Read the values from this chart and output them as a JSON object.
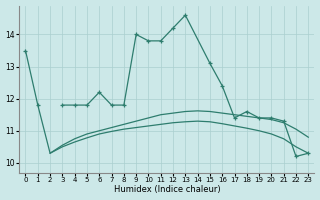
{
  "color": "#2e7d6e",
  "bg_color": "#cce8e8",
  "grid_color": "#aacfcf",
  "xlabel": "Humidex (Indice chaleur)",
  "ylim": [
    9.7,
    14.9
  ],
  "xlim": [
    -0.5,
    23.5
  ],
  "yticks": [
    10,
    11,
    12,
    13,
    14
  ],
  "xticks": [
    0,
    1,
    2,
    3,
    4,
    5,
    6,
    7,
    8,
    9,
    10,
    11,
    12,
    13,
    14,
    15,
    16,
    17,
    18,
    19,
    20,
    21,
    22,
    23
  ],
  "curve1_x": [
    0,
    1,
    2,
    3,
    4,
    5,
    6,
    7,
    8,
    9,
    10,
    11,
    12,
    13,
    15,
    16,
    17,
    18,
    19,
    20,
    21,
    22,
    23
  ],
  "curve1_y": [
    13.5,
    11.8,
    null,
    11.8,
    11.8,
    11.8,
    12.2,
    11.8,
    11.8,
    14.0,
    13.8,
    13.8,
    14.2,
    14.6,
    13.1,
    12.4,
    11.4,
    11.6,
    11.4,
    11.4,
    11.3,
    10.2,
    10.3
  ],
  "curve2_x": [
    1,
    2,
    3,
    4,
    5,
    6,
    7,
    8,
    9,
    10,
    11,
    12,
    13,
    14,
    15,
    16,
    17,
    18,
    19,
    20,
    21,
    22,
    23
  ],
  "curve2_y": [
    11.8,
    10.3,
    10.55,
    10.75,
    10.9,
    11.0,
    11.1,
    11.2,
    11.3,
    11.4,
    11.5,
    11.55,
    11.6,
    11.62,
    11.6,
    11.55,
    11.5,
    11.45,
    11.4,
    11.35,
    11.25,
    11.05,
    10.8
  ],
  "curve3_x": [
    2,
    3,
    4,
    5,
    6,
    7,
    8,
    9,
    10,
    11,
    12,
    13,
    14,
    15,
    16,
    17,
    18,
    19,
    20,
    21,
    22,
    23
  ],
  "curve3_y": [
    10.3,
    10.5,
    10.65,
    10.78,
    10.9,
    10.98,
    11.05,
    11.1,
    11.15,
    11.2,
    11.25,
    11.28,
    11.3,
    11.28,
    11.22,
    11.15,
    11.08,
    11.0,
    10.9,
    10.75,
    10.5,
    10.3
  ]
}
